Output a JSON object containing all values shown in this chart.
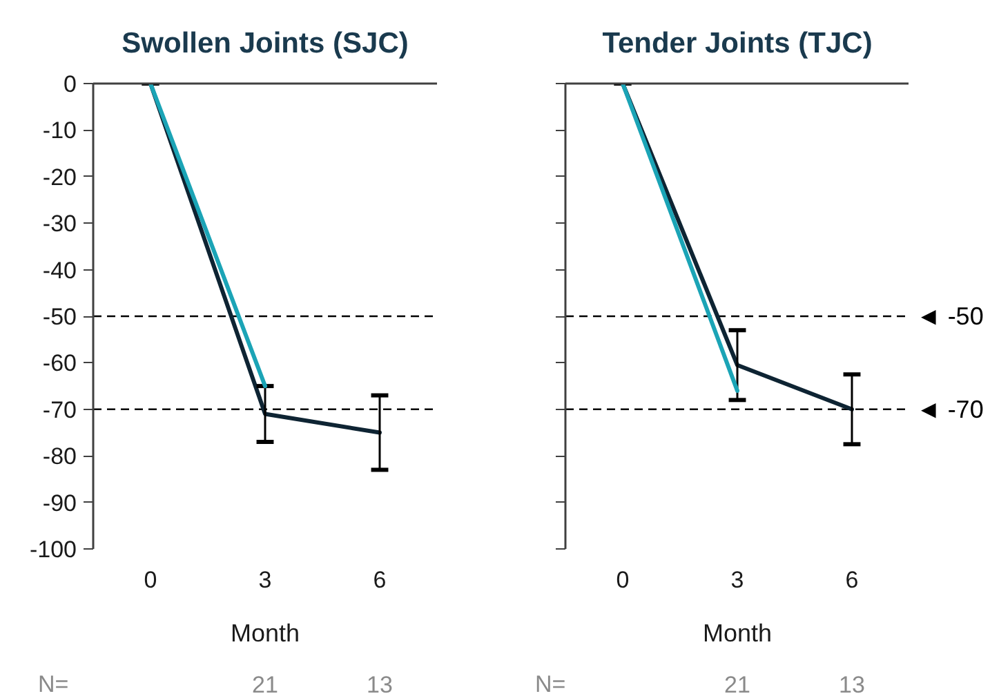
{
  "chart_data": [
    {
      "type": "line",
      "title": "Swollen Joints (SJC)",
      "xlabel": "Month",
      "categories": [
        "0",
        "3",
        "6"
      ],
      "series": [
        {
          "color": "#0e2433",
          "values": [
            0,
            -71,
            -75
          ],
          "errors": [
            0,
            6,
            8
          ]
        },
        {
          "color": "#1ba4b6",
          "values": [
            0,
            -65,
            null
          ]
        }
      ],
      "ylim": [
        -100,
        0
      ],
      "yticks": [
        0,
        -10,
        -20,
        -30,
        -40,
        -50,
        -60,
        -70,
        -80,
        -90,
        -100
      ],
      "ref_lines": [
        {
          "axis": "y",
          "value": -50,
          "color": "#000000",
          "line_style": "dashed"
        },
        {
          "axis": "y",
          "value": -70,
          "color": "#000000",
          "line_style": "dashed"
        }
      ],
      "annotations": [
        "N=",
        "21",
        "13"
      ]
    },
    {
      "type": "line",
      "title": "Tender Joints (TJC)",
      "xlabel": "Month",
      "categories": [
        "0",
        "3",
        "6"
      ],
      "series": [
        {
          "color": "#0e2433",
          "values": [
            0,
            -60.5,
            -70
          ],
          "errors": [
            0,
            7.5,
            7.5
          ]
        },
        {
          "color": "#1ba4b6",
          "values": [
            0,
            -66,
            null
          ]
        }
      ],
      "ylim": [
        -100,
        0
      ],
      "yticks": [
        0,
        -10,
        -20,
        -30,
        -40,
        -50,
        -60,
        -70,
        -80,
        -90,
        -100
      ],
      "tick_labels": "x",
      "ref_lines": [
        {
          "axis": "y",
          "value": -50,
          "label": "◄ -50",
          "color": "#000000",
          "line_style": "dashed"
        },
        {
          "axis": "y",
          "value": -70,
          "label": "◄ -70",
          "color": "#000000",
          "line_style": "dashed"
        }
      ],
      "annotations": [
        "N=",
        "21",
        "13"
      ]
    }
  ]
}
